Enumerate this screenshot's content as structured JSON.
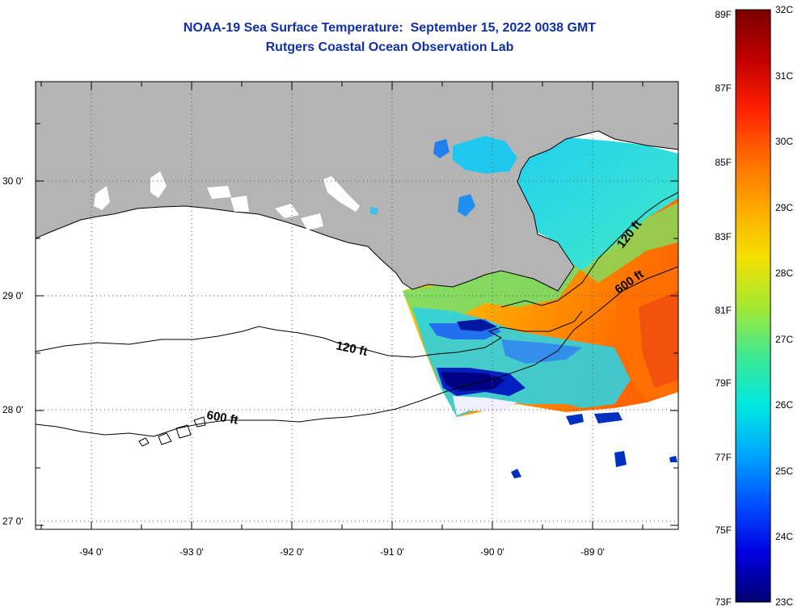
{
  "title": {
    "line1": "NOAA-19 Sea Surface Temperature:  September 15, 2022 0038 GMT",
    "line2": "Rutgers Coastal Ocean Observation Lab"
  },
  "map": {
    "lat_labels": [
      "30 0'",
      "29 0'",
      "28 0'",
      "27 0'"
    ],
    "lon_labels": [
      "-94 0'",
      "-93 0'",
      "-92 0'",
      "-91 0'",
      "-90 0'",
      "-89 0'"
    ],
    "contour_labels": [
      {
        "id": "c120w",
        "text": "120 ft"
      },
      {
        "id": "c600w",
        "text": "600 ft"
      },
      {
        "id": "c120e",
        "text": "120 ft"
      },
      {
        "id": "c600e",
        "text": "600 ft"
      }
    ]
  },
  "colorbar": {
    "fahrenheit_labels": [
      "89F",
      "87F",
      "85F",
      "83F",
      "81F",
      "79F",
      "77F",
      "75F",
      "73F"
    ],
    "celsius_labels": [
      "32C",
      "31C",
      "30C",
      "29C",
      "28C",
      "27C",
      "26C",
      "25C",
      "24C",
      "23C"
    ],
    "colors": [
      "#7a0000",
      "#c00000",
      "#ff2000",
      "#ff6a00",
      "#ffa800",
      "#f5e000",
      "#a6e830",
      "#40e890",
      "#00e8e0",
      "#00a8ff",
      "#0050ff",
      "#0000e0",
      "#000070"
    ]
  },
  "colors": {
    "land": "#b4b4b4",
    "title": "#1030a8"
  }
}
